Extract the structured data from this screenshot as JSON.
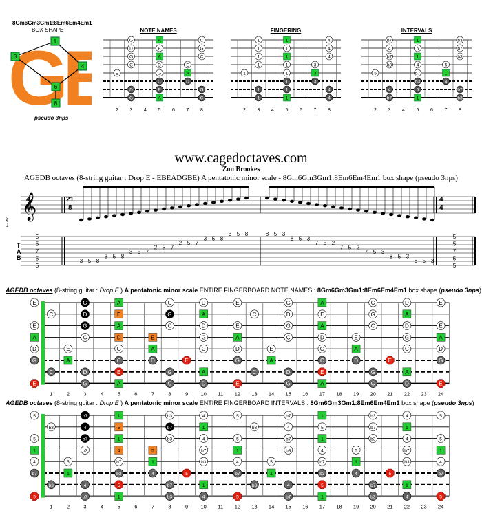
{
  "shape_box": {
    "code": "8Gm6Gm3Gm1:8Em6Em4Em1",
    "label": "BOX SHAPE",
    "big_letters": "GE",
    "caption": "pseudo 3nps",
    "markers": [
      "1",
      "3",
      "4",
      "6",
      "8"
    ]
  },
  "mini_diagrams": [
    {
      "title": "NOTE NAMES"
    },
    {
      "title": "FINGERING"
    },
    {
      "title": "INTERVALS"
    }
  ],
  "mini_fret_numbers": [
    "2",
    "3",
    "4",
    "5",
    "6",
    "7",
    "8"
  ],
  "site_title": "www.cagedoctaves.com",
  "author": "Zon Brookes",
  "subtitle": "AGEDB octaves (8-string guitar : Drop E - EBEADGBE) A pentatonic minor scale - 8Gm6Gm3Gm1:8Em6Em4Em1 box shape (pseudo 3nps)",
  "notation": {
    "instrument_label": "E-GtR",
    "time_sig_left": [
      "4",
      "4"
    ],
    "time_sig_mid": [
      "21",
      "8"
    ],
    "time_sig_right": [
      "4",
      "4"
    ],
    "tab_letters": [
      "T",
      "A",
      "B"
    ],
    "tab_left": [
      "5",
      "5",
      "7",
      "5",
      "5"
    ],
    "tab_right": [
      "5",
      "5",
      "7",
      "5",
      "5"
    ],
    "tab_run": "3 5 8 3 5 8 3 5 7 2 5 7 2 5 7 3 5 8 3 5 8 8 5 3 8 5 3 7 5 2 7 5 2 7 5 3 8 5 3 8 5 3"
  },
  "board1": {
    "title_a": "AGEDB octaves",
    "title_b": " (8-string guitar : ",
    "title_c": "Drop E",
    "title_d": " ) ",
    "title_e": "A pentatonic minor scale",
    "title_f": " ENTIRE FINGERBOARD NOTE NAMES : ",
    "title_g": "8Gm6Gm3Gm1:8Em6Em4Em1",
    "title_h": " box shape (",
    "title_i": "pseudo 3nps",
    "title_j": ")"
  },
  "board2": {
    "title_a": "AGEDB octaves",
    "title_b": " (8-string guitar : ",
    "title_c": "Drop E",
    "title_d": " ) ",
    "title_e": "A pentatonic minor scale",
    "title_f": " ENTIRE FINGERBOARD INTERVALS : ",
    "title_g": "8Gm6Gm3Gm1:8Em6Em4Em1",
    "title_h": " box shape (",
    "title_i": "pseudo 3nps",
    "title_j": ")"
  },
  "fret_numbers": [
    "1",
    "2",
    "3",
    "4",
    "5",
    "6",
    "7",
    "8",
    "9",
    "10",
    "11",
    "12",
    "13",
    "14",
    "15",
    "16",
    "17",
    "18",
    "19",
    "20",
    "21",
    "22",
    "23",
    "24"
  ],
  "colors": {
    "green": "#22cc33",
    "orange": "#f08020",
    "red": "#e02010",
    "black": "#000000",
    "gray": "#777777",
    "white": "#ffffff"
  }
}
